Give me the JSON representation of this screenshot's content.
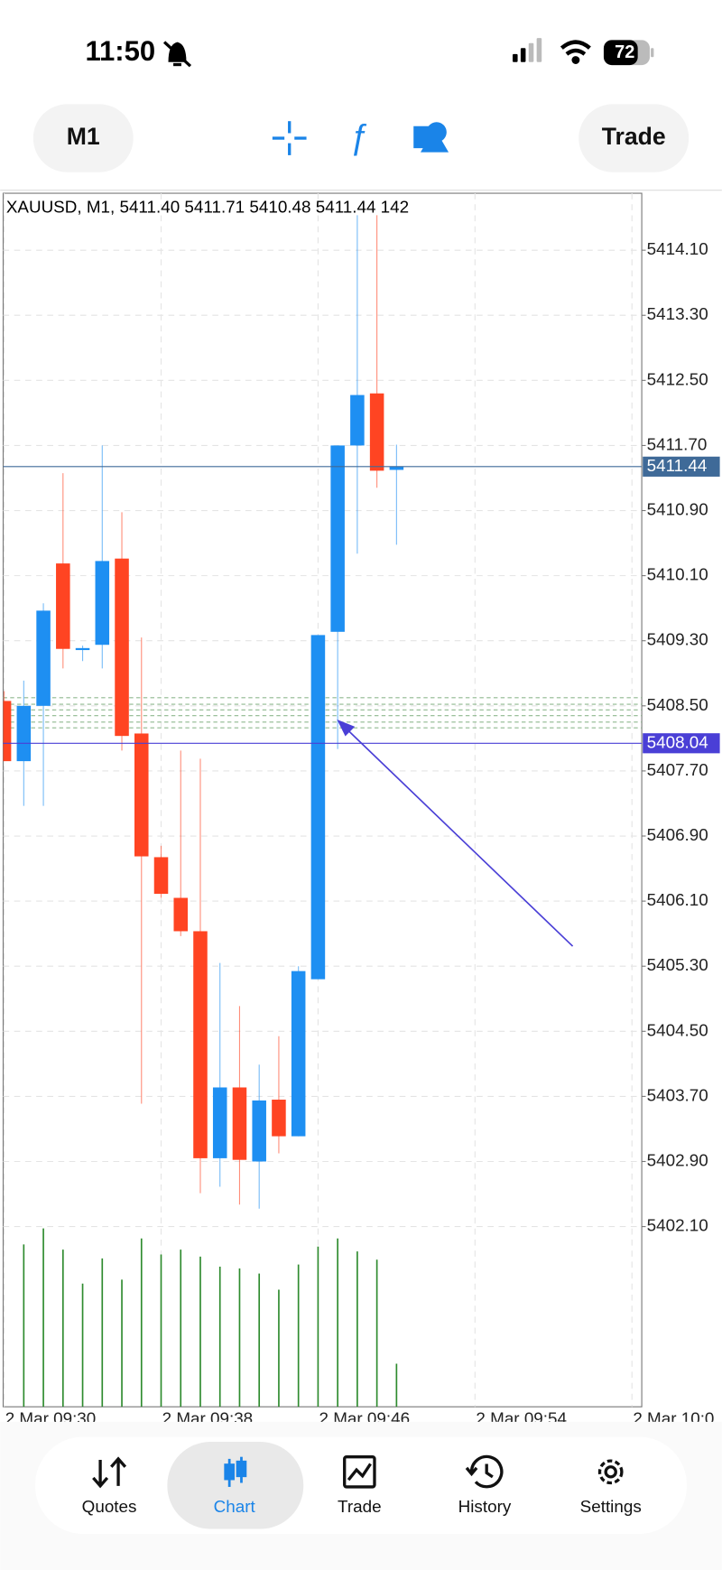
{
  "status_bar": {
    "time": "11:50",
    "battery": "72"
  },
  "toolbar": {
    "timeframe": "M1",
    "trade": "Trade"
  },
  "nav": [
    "Quotes",
    "Chart",
    "Trade",
    "History",
    "Settings"
  ],
  "chart_data": {
    "type": "candlestick",
    "subtitle": "XAUUSD, M1, 5411.40 5411.71 5410.48 5411.44 142",
    "categories": [
      "2 Mar 09:30",
      null,
      null,
      null,
      null,
      null,
      null,
      null,
      "2 Mar 09:38",
      null,
      null,
      null,
      null,
      null,
      null,
      null,
      "2 Mar 09:46",
      null,
      null,
      null,
      null,
      null,
      null,
      null,
      "2 Mar 09:54",
      null,
      null,
      null,
      null,
      null,
      null,
      null,
      "2 Mar 10:0"
    ],
    "open": [
      5408.56,
      5407.82,
      5408.5,
      5410.25,
      5409.19,
      5409.25,
      5410.31,
      5408.16,
      5406.64,
      5406.14,
      5405.73,
      5402.94,
      5403.81,
      5402.9,
      5403.66,
      5403.21,
      5405.14,
      5409.41,
      5411.7,
      5412.34,
      5411.4,
      null,
      null,
      null,
      null,
      null,
      null,
      null,
      null,
      null,
      null,
      null,
      null
    ],
    "high": [
      5408.68,
      5408.81,
      5409.76,
      5411.36,
      5409.24,
      5411.7,
      5410.88,
      5409.34,
      5406.78,
      5407.95,
      5407.85,
      5405.34,
      5404.81,
      5404.09,
      5404.44,
      5405.3,
      5409.37,
      5411.7,
      5414.53,
      5414.53,
      5411.71,
      null,
      null,
      null,
      null,
      null,
      null,
      null,
      null,
      null,
      null,
      null,
      null
    ],
    "low": [
      5407.82,
      5407.27,
      5407.27,
      5408.96,
      5409.05,
      5408.96,
      5407.95,
      5403.61,
      5406.14,
      5405.67,
      5402.51,
      5402.59,
      5402.37,
      5402.32,
      5403.0,
      5403.21,
      5405.14,
      5407.97,
      5410.37,
      5411.18,
      5410.48,
      null,
      null,
      null,
      null,
      null,
      null,
      null,
      null,
      null,
      null,
      null,
      null
    ],
    "close": [
      5407.82,
      5408.5,
      5409.67,
      5409.2,
      5409.21,
      5410.28,
      5408.13,
      5406.65,
      5406.19,
      5405.73,
      5402.94,
      5403.81,
      5402.92,
      5403.65,
      5403.21,
      5405.24,
      5409.37,
      5411.7,
      5412.32,
      5411.39,
      5411.44,
      null,
      null,
      null,
      null,
      null,
      null,
      null,
      null,
      null,
      null,
      null,
      null
    ],
    "volume": [
      null,
      535,
      588,
      518,
      406,
      489,
      419,
      555,
      502,
      518,
      495,
      462,
      456,
      439,
      386,
      469,
      528,
      555,
      512,
      485,
      142,
      null,
      null,
      null,
      null,
      null,
      null,
      null,
      null,
      null,
      null,
      null,
      null
    ],
    "up_color": "#1e8ff2",
    "down_color": "#ff4422",
    "volume_color": "#2e8b2e",
    "xlim": [
      -0.05,
      32.5
    ],
    "ylim": [
      5399.885,
      5414.8
    ],
    "vlim": [
      0,
      594
    ],
    "yticks": [
      {
        "value": 5414.1,
        "label": "5414.10"
      },
      {
        "value": 5413.3,
        "label": "5413.30"
      },
      {
        "value": 5412.5,
        "label": "5412.50"
      },
      {
        "value": 5411.7,
        "label": "5411.70"
      },
      {
        "value": 5410.9,
        "label": "5410.90"
      },
      {
        "value": 5410.1,
        "label": "5410.10"
      },
      {
        "value": 5409.3,
        "label": "5409.30"
      },
      {
        "value": 5408.5,
        "label": "5408.50"
      },
      {
        "value": 5407.7,
        "label": "5407.70"
      },
      {
        "value": 5406.9,
        "label": "5406.90"
      },
      {
        "value": 5406.1,
        "label": "5406.10"
      },
      {
        "value": 5405.3,
        "label": "5405.30"
      },
      {
        "value": 5404.5,
        "label": "5404.50"
      },
      {
        "value": 5403.7,
        "label": "5403.70"
      },
      {
        "value": 5402.9,
        "label": "5402.90"
      },
      {
        "value": 5402.1,
        "label": "5402.10"
      }
    ],
    "grid": true,
    "price_lines": [
      {
        "value": 5411.44,
        "color": "#3f6a98"
      },
      {
        "value": 5408.04,
        "color": "#4a3fd6"
      }
    ],
    "order_levels": [
      5408.6,
      5408.52,
      5408.45,
      5408.38,
      5408.3,
      5408.23
    ],
    "order_level_color": "#8fb88f"
  }
}
